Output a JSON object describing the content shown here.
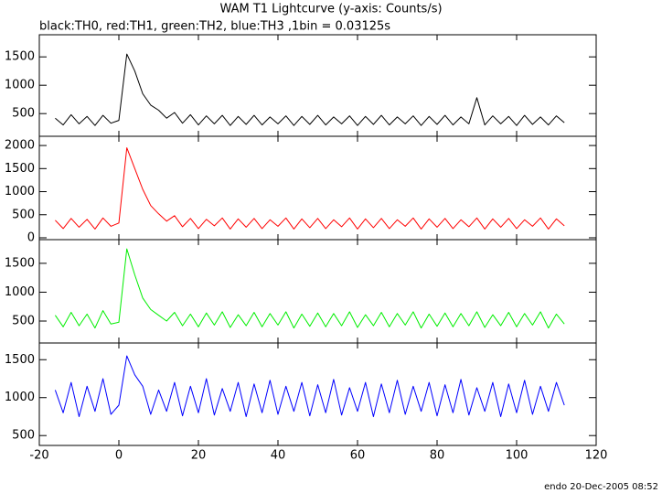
{
  "header": {
    "title": "WAM T1 Lightcurve (y-axis: Counts/s)",
    "subtitle": "black:TH0, red:TH1, green:TH2, blue:TH3 ,1bin = 0.03125s"
  },
  "footer": "endo 20-Dec-2005 08:52",
  "chart_data": [
    {
      "type": "line",
      "xlim": [
        -20,
        120
      ],
      "ylim": [
        100,
        1890
      ],
      "yticks": [
        500,
        1000,
        1500
      ],
      "x": [
        -16,
        -14,
        -12,
        -10,
        -8,
        -6,
        -4,
        -2,
        0,
        2,
        4,
        6,
        8,
        10,
        12,
        14,
        16,
        18,
        20,
        22,
        24,
        26,
        28,
        30,
        32,
        34,
        36,
        38,
        40,
        42,
        44,
        46,
        48,
        50,
        52,
        54,
        56,
        58,
        60,
        62,
        64,
        66,
        68,
        70,
        72,
        74,
        76,
        78,
        80,
        82,
        84,
        86,
        88,
        90,
        92,
        94,
        96,
        98,
        100,
        102,
        104,
        106,
        108,
        110,
        112
      ],
      "series": [
        {
          "color": "#000000",
          "values": [
            420,
            300,
            480,
            320,
            450,
            290,
            470,
            330,
            380,
            1550,
            1250,
            850,
            650,
            560,
            420,
            520,
            330,
            480,
            300,
            460,
            320,
            470,
            290,
            450,
            310,
            470,
            300,
            440,
            320,
            460,
            290,
            450,
            310,
            470,
            300,
            440,
            320,
            460,
            290,
            450,
            310,
            470,
            300,
            440,
            320,
            460,
            290,
            450,
            310,
            470,
            300,
            440,
            320,
            780,
            300,
            460,
            320,
            450,
            290,
            470,
            310,
            440,
            300,
            460,
            340
          ]
        }
      ]
    },
    {
      "type": "line",
      "xlim": [
        -20,
        120
      ],
      "ylim": [
        -40,
        2200
      ],
      "yticks": [
        0,
        500,
        1000,
        1500,
        2000
      ],
      "x": [
        -16,
        -14,
        -12,
        -10,
        -8,
        -6,
        -4,
        -2,
        0,
        2,
        4,
        6,
        8,
        10,
        12,
        14,
        16,
        18,
        20,
        22,
        24,
        26,
        28,
        30,
        32,
        34,
        36,
        38,
        40,
        42,
        44,
        46,
        48,
        50,
        52,
        54,
        56,
        58,
        60,
        62,
        64,
        66,
        68,
        70,
        72,
        74,
        76,
        78,
        80,
        82,
        84,
        86,
        88,
        90,
        92,
        94,
        96,
        98,
        100,
        102,
        104,
        106,
        108,
        110,
        112
      ],
      "series": [
        {
          "color": "#ff0000",
          "values": [
            380,
            200,
            420,
            230,
            400,
            190,
            430,
            250,
            320,
            1950,
            1500,
            1050,
            700,
            520,
            360,
            480,
            240,
            420,
            200,
            400,
            260,
            430,
            190,
            410,
            230,
            420,
            200,
            390,
            250,
            430,
            190,
            410,
            220,
            420,
            200,
            390,
            240,
            430,
            190,
            410,
            220,
            420,
            200,
            390,
            250,
            430,
            190,
            410,
            230,
            420,
            200,
            390,
            240,
            430,
            190,
            410,
            230,
            420,
            200,
            390,
            250,
            430,
            190,
            410,
            260
          ]
        }
      ]
    },
    {
      "type": "line",
      "xlim": [
        -20,
        120
      ],
      "ylim": [
        120,
        1910
      ],
      "yticks": [
        500,
        1000,
        1500
      ],
      "x": [
        -16,
        -14,
        -12,
        -10,
        -8,
        -6,
        -4,
        -2,
        0,
        2,
        4,
        6,
        8,
        10,
        12,
        14,
        16,
        18,
        20,
        22,
        24,
        26,
        28,
        30,
        32,
        34,
        36,
        38,
        40,
        42,
        44,
        46,
        48,
        50,
        52,
        54,
        56,
        58,
        60,
        62,
        64,
        66,
        68,
        70,
        72,
        74,
        76,
        78,
        80,
        82,
        84,
        86,
        88,
        90,
        92,
        94,
        96,
        98,
        100,
        102,
        104,
        106,
        108,
        110,
        112
      ],
      "series": [
        {
          "color": "#00ee00",
          "values": [
            600,
            400,
            650,
            420,
            620,
            380,
            680,
            450,
            480,
            1750,
            1300,
            900,
            700,
            600,
            500,
            650,
            420,
            620,
            400,
            640,
            430,
            660,
            390,
            610,
            420,
            650,
            400,
            630,
            430,
            660,
            380,
            620,
            410,
            640,
            400,
            630,
            420,
            660,
            390,
            610,
            420,
            650,
            400,
            630,
            430,
            660,
            380,
            620,
            410,
            640,
            400,
            630,
            420,
            660,
            390,
            610,
            420,
            650,
            400,
            630,
            430,
            660,
            380,
            620,
            450
          ]
        }
      ]
    },
    {
      "type": "line",
      "xlim": [
        -20,
        120
      ],
      "xticks": [
        -20,
        0,
        20,
        40,
        60,
        80,
        100,
        120
      ],
      "ylim": [
        370,
        1720
      ],
      "yticks": [
        500,
        1000,
        1500
      ],
      "x": [
        -16,
        -14,
        -12,
        -10,
        -8,
        -6,
        -4,
        -2,
        0,
        2,
        4,
        6,
        8,
        10,
        12,
        14,
        16,
        18,
        20,
        22,
        24,
        26,
        28,
        30,
        32,
        34,
        36,
        38,
        40,
        42,
        44,
        46,
        48,
        50,
        52,
        54,
        56,
        58,
        60,
        62,
        64,
        66,
        68,
        70,
        72,
        74,
        76,
        78,
        80,
        82,
        84,
        86,
        88,
        90,
        92,
        94,
        96,
        98,
        100,
        102,
        104,
        106,
        108,
        110,
        112
      ],
      "series": [
        {
          "color": "#0000ff",
          "values": [
            1100,
            800,
            1200,
            750,
            1150,
            820,
            1250,
            780,
            900,
            1550,
            1300,
            1150,
            780,
            1100,
            820,
            1200,
            760,
            1150,
            800,
            1250,
            770,
            1120,
            820,
            1200,
            750,
            1180,
            800,
            1230,
            780,
            1150,
            820,
            1200,
            760,
            1170,
            800,
            1240,
            770,
            1130,
            820,
            1200,
            750,
            1180,
            800,
            1230,
            780,
            1150,
            820,
            1200,
            760,
            1170,
            800,
            1240,
            770,
            1130,
            820,
            1200,
            750,
            1180,
            800,
            1230,
            780,
            1150,
            820,
            1200,
            900
          ]
        }
      ]
    }
  ]
}
